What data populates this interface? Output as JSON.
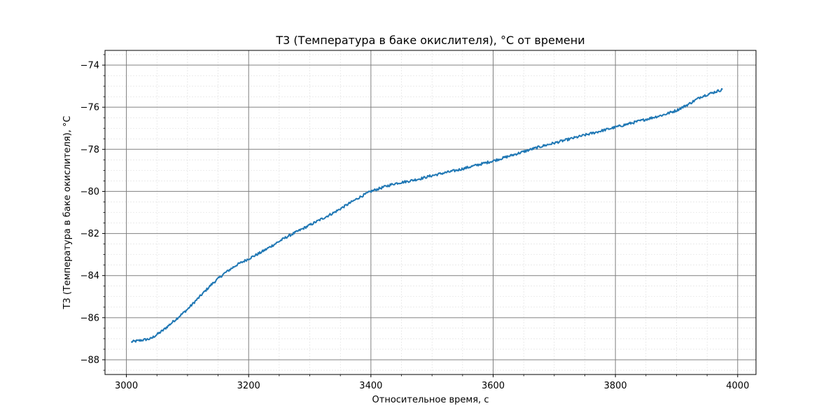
{
  "chart_data": {
    "type": "line",
    "title": "T3 (Температура в баке окислителя), °C от времени",
    "xlabel": "Относительное время, с",
    "ylabel": "T3 (Температура в баке окислителя), °C",
    "xlim": [
      2965,
      4030
    ],
    "ylim": [
      -88.7,
      -73.3
    ],
    "x_ticks": [
      3000,
      3200,
      3400,
      3600,
      3800,
      4000
    ],
    "y_ticks": [
      -74,
      -76,
      -78,
      -80,
      -82,
      -84,
      -86,
      -88
    ],
    "x_tick_labels": [
      "3000",
      "3200",
      "3400",
      "3600",
      "3800",
      "4000"
    ],
    "y_tick_labels": [
      "−74",
      "−76",
      "−78",
      "−80",
      "−82",
      "−84",
      "−86",
      "−88"
    ],
    "grid": true,
    "minor_grid": true,
    "series": [
      {
        "color": "#1f77b4",
        "x": [
          3008,
          3040,
          3060,
          3080,
          3100,
          3120,
          3140,
          3160,
          3180,
          3200,
          3220,
          3240,
          3260,
          3280,
          3300,
          3320,
          3340,
          3360,
          3380,
          3400,
          3420,
          3440,
          3460,
          3480,
          3500,
          3520,
          3540,
          3560,
          3580,
          3600,
          3620,
          3640,
          3660,
          3680,
          3700,
          3720,
          3740,
          3760,
          3780,
          3800,
          3820,
          3840,
          3860,
          3880,
          3900,
          3920,
          3940,
          3960,
          3976
        ],
        "y": [
          -87.15,
          -87.0,
          -86.6,
          -86.1,
          -85.6,
          -85.0,
          -84.4,
          -83.9,
          -83.5,
          -83.2,
          -82.9,
          -82.55,
          -82.2,
          -81.9,
          -81.6,
          -81.3,
          -81.0,
          -80.65,
          -80.3,
          -80.0,
          -79.8,
          -79.62,
          -79.52,
          -79.4,
          -79.25,
          -79.12,
          -79.0,
          -78.85,
          -78.7,
          -78.55,
          -78.38,
          -78.2,
          -78.02,
          -77.85,
          -77.7,
          -77.55,
          -77.4,
          -77.25,
          -77.1,
          -76.95,
          -76.8,
          -76.65,
          -76.5,
          -76.35,
          -76.15,
          -75.85,
          -75.5,
          -75.3,
          -75.15
        ]
      }
    ]
  }
}
